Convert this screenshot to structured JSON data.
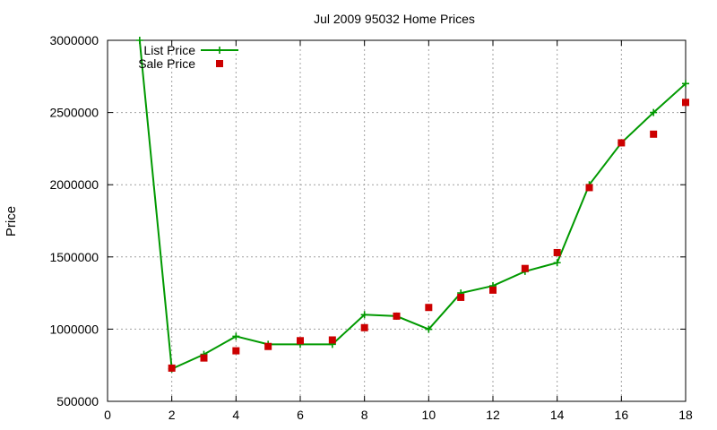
{
  "chart_data": {
    "type": "line",
    "title": "Jul 2009 95032 Home Prices",
    "xlabel": "",
    "ylabel": "Price",
    "xlim": [
      0,
      18
    ],
    "ylim": [
      500000,
      3000000
    ],
    "xticks": [
      0,
      2,
      4,
      6,
      8,
      10,
      12,
      14,
      16,
      18
    ],
    "yticks": [
      500000,
      1000000,
      1500000,
      2000000,
      2500000,
      3000000
    ],
    "grid": true,
    "legend_position": "top-left",
    "series": [
      {
        "name": "List Price",
        "style": "line-plus",
        "color": "#009900",
        "x": [
          1,
          2,
          3,
          4,
          5,
          6,
          7,
          8,
          9,
          10,
          11,
          12,
          13,
          14,
          15,
          16,
          17,
          18
        ],
        "y": [
          3000000,
          725000,
          825000,
          950000,
          895000,
          895000,
          895000,
          1100000,
          1090000,
          999000,
          1250000,
          1300000,
          1400000,
          1460000,
          2000000,
          2290000,
          2500000,
          2700000
        ]
      },
      {
        "name": "Sale Price",
        "style": "square-points",
        "color": "#cc0000",
        "x": [
          2,
          3,
          4,
          5,
          6,
          7,
          8,
          9,
          10,
          11,
          12,
          13,
          14,
          15,
          16,
          17,
          18
        ],
        "y": [
          730000,
          800000,
          850000,
          880000,
          920000,
          925000,
          1010000,
          1090000,
          1150000,
          1220000,
          1270000,
          1420000,
          1530000,
          1980000,
          2290000,
          2350000,
          2570000
        ]
      }
    ]
  }
}
